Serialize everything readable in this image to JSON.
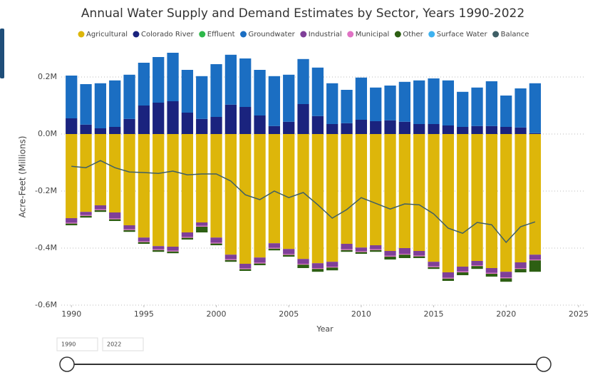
{
  "chart_data": {
    "type": "bar",
    "stacked": true,
    "title": "Annual Water Supply and Demand Estimates by Sector, Years 1990-2022",
    "x_label": "Year",
    "y_label": "Acre-Feet (Millions)",
    "x": [
      1990,
      1991,
      1992,
      1993,
      1994,
      1995,
      1996,
      1997,
      1998,
      1999,
      2000,
      2001,
      2002,
      2003,
      2004,
      2005,
      2006,
      2007,
      2008,
      2009,
      2010,
      2011,
      2012,
      2013,
      2014,
      2015,
      2016,
      2017,
      2018,
      2019,
      2020,
      2021,
      2022
    ],
    "xlim": [
      1989.3,
      2025.4
    ],
    "xticks": [
      1990,
      1995,
      2000,
      2005,
      2010,
      2015,
      2020,
      2025
    ],
    "ylim": [
      -0.6,
      0.3
    ],
    "yticks": [
      {
        "value": 0.2,
        "label": "0.2M"
      },
      {
        "value": 0,
        "label": "0.0M"
      },
      {
        "value": -0.2,
        "label": "-0.2M"
      },
      {
        "value": -0.4,
        "label": "-0.4M"
      },
      {
        "value": -0.6,
        "label": "-0.6M"
      }
    ],
    "grid": true,
    "legend": "top",
    "series": [
      {
        "name": "Agricultural",
        "color": "#DDB60A",
        "values": [
          -0.295,
          -0.273,
          -0.25,
          -0.275,
          -0.32,
          -0.363,
          -0.393,
          -0.395,
          -0.345,
          -0.31,
          -0.363,
          -0.423,
          -0.455,
          -0.433,
          -0.383,
          -0.403,
          -0.438,
          -0.453,
          -0.448,
          -0.385,
          -0.398,
          -0.39,
          -0.41,
          -0.4,
          -0.41,
          -0.448,
          -0.485,
          -0.465,
          -0.445,
          -0.47,
          -0.483,
          -0.45,
          -0.423
        ]
      },
      {
        "name": "Colorado River",
        "color": "#1A237E",
        "values": [
          0.055,
          0.033,
          0.02,
          0.025,
          0.053,
          0.1,
          0.11,
          0.115,
          0.075,
          0.053,
          0.06,
          0.103,
          0.095,
          0.065,
          0.028,
          0.043,
          0.105,
          0.063,
          0.035,
          0.038,
          0.05,
          0.045,
          0.048,
          0.043,
          0.035,
          0.035,
          0.03,
          0.025,
          0.028,
          0.028,
          0.025,
          0.023,
          0.003
        ]
      },
      {
        "name": "Effluent",
        "color": "#2EB84A",
        "values": [
          0,
          0,
          0,
          0,
          0,
          0,
          0,
          0,
          0,
          0,
          0,
          0,
          0,
          0,
          0,
          0,
          0,
          0,
          0,
          0,
          0,
          0,
          0,
          0,
          0,
          0,
          0,
          0,
          0,
          0,
          0,
          0,
          0
        ]
      },
      {
        "name": "Groundwater",
        "color": "#1B6EC2",
        "values": [
          0.15,
          0.142,
          0.158,
          0.163,
          0.155,
          0.15,
          0.16,
          0.17,
          0.15,
          0.15,
          0.185,
          0.175,
          0.17,
          0.16,
          0.175,
          0.165,
          0.158,
          0.17,
          0.143,
          0.117,
          0.148,
          0.118,
          0.122,
          0.14,
          0.153,
          0.16,
          0.158,
          0.123,
          0.135,
          0.157,
          0.11,
          0.137,
          0.175
        ]
      },
      {
        "name": "Industrial",
        "color": "#7F3F98",
        "values": [
          -0.016,
          -0.011,
          -0.014,
          -0.021,
          -0.014,
          -0.013,
          -0.011,
          -0.014,
          -0.016,
          -0.012,
          -0.018,
          -0.016,
          -0.016,
          -0.018,
          -0.016,
          -0.018,
          -0.017,
          -0.017,
          -0.017,
          -0.019,
          -0.013,
          -0.014,
          -0.017,
          -0.02,
          -0.016,
          -0.016,
          -0.019,
          -0.017,
          -0.015,
          -0.017,
          -0.02,
          -0.02,
          -0.017
        ]
      },
      {
        "name": "Municipal",
        "color": "#E072C4",
        "values": [
          -0.003,
          -0.003,
          -0.003,
          -0.003,
          -0.003,
          -0.003,
          -0.003,
          -0.003,
          -0.003,
          -0.003,
          -0.003,
          -0.003,
          -0.003,
          -0.003,
          -0.003,
          -0.003,
          -0.003,
          -0.003,
          -0.003,
          -0.003,
          -0.003,
          -0.003,
          -0.003,
          -0.003,
          -0.003,
          -0.003,
          -0.003,
          -0.003,
          -0.003,
          -0.003,
          -0.003,
          -0.003,
          -0.003
        ]
      },
      {
        "name": "Other",
        "color": "#2D5F13",
        "values": [
          -0.006,
          -0.006,
          -0.006,
          -0.006,
          -0.006,
          -0.006,
          -0.006,
          -0.006,
          -0.006,
          -0.02,
          -0.006,
          -0.006,
          -0.006,
          -0.006,
          -0.006,
          -0.006,
          -0.012,
          -0.01,
          -0.01,
          -0.006,
          -0.006,
          -0.006,
          -0.01,
          -0.012,
          -0.006,
          -0.006,
          -0.008,
          -0.01,
          -0.01,
          -0.01,
          -0.012,
          -0.012,
          -0.04
        ]
      },
      {
        "name": "Surface Water",
        "color": "#3EB2F0",
        "values": [
          0,
          0,
          0,
          0,
          0,
          0,
          0,
          0,
          0,
          0,
          0,
          0,
          0,
          0,
          0,
          0,
          0,
          0,
          0,
          0,
          0,
          0,
          0,
          0,
          0,
          0,
          0,
          0,
          0,
          0,
          0,
          0,
          0
        ]
      },
      {
        "name": "Balance",
        "color": "#3F5F66",
        "type": "line",
        "values": [
          -0.113,
          -0.118,
          -0.093,
          -0.118,
          -0.133,
          -0.135,
          -0.138,
          -0.13,
          -0.143,
          -0.14,
          -0.14,
          -0.165,
          -0.213,
          -0.23,
          -0.2,
          -0.223,
          -0.205,
          -0.248,
          -0.295,
          -0.265,
          -0.223,
          -0.243,
          -0.263,
          -0.245,
          -0.248,
          -0.28,
          -0.33,
          -0.348,
          -0.31,
          -0.318,
          -0.38,
          -0.325,
          -0.308
        ]
      }
    ]
  },
  "slicer": {
    "from": "1990",
    "to": "2022"
  }
}
